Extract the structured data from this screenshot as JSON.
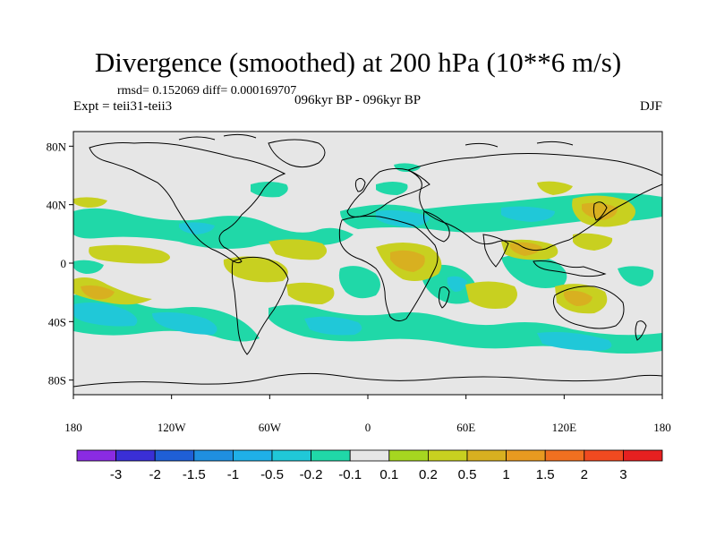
{
  "title": "Divergence (smoothed) at 200 hPa (10**6 m/s)",
  "stats": "rmsd= 0.152069 diff= 0.000169707",
  "experiment": "Expt = teii31-teii3",
  "period": "096kyr BP - 096kyr BP",
  "season": "DJF",
  "y_ticks": [
    "80N",
    "40N",
    "0",
    "40S",
    "80S"
  ],
  "x_ticks": [
    "180",
    "120W",
    "60W",
    "0",
    "60E",
    "120E",
    "180"
  ],
  "colorbar": {
    "colors": [
      "#8a2be2",
      "#3a2fd6",
      "#1f5fd6",
      "#1f8fe0",
      "#1fb0e8",
      "#20c8d8",
      "#20d8a8",
      "#e6e6e6",
      "#a6d620",
      "#c8d020",
      "#d8b020",
      "#e89a20",
      "#f07020",
      "#f04a20",
      "#e62020"
    ],
    "labels": [
      "-3",
      "-2",
      "-1.5",
      "-1",
      "-0.5",
      "-0.2",
      "-0.1",
      "0.1",
      "0.2",
      "0.5",
      "1",
      "1.5",
      "2",
      "3"
    ]
  },
  "map": {
    "ocean": "#e6e6e6",
    "neutral_color": "#e6e6e6"
  }
}
